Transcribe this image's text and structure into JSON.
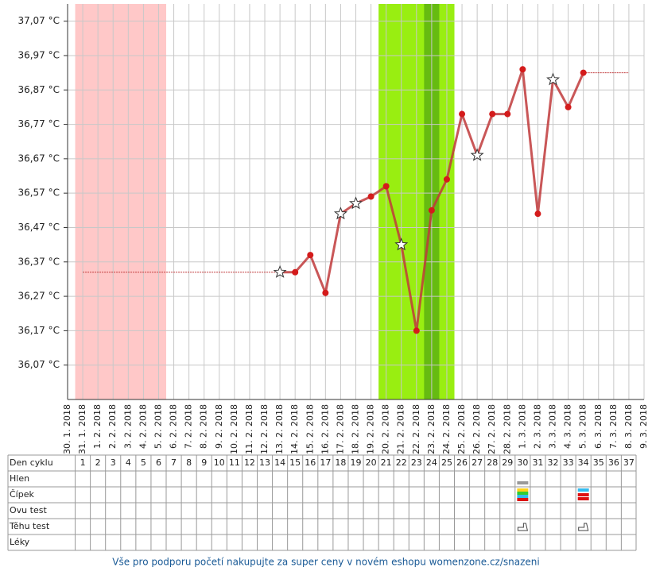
{
  "chart_data": {
    "type": "line",
    "categories": [
      "30. 1. 2018",
      "31. 1. 2018",
      "1. 2. 2018",
      "2. 2. 2018",
      "3. 2. 2018",
      "4. 2. 2018",
      "5. 2. 2018",
      "6. 2. 2018",
      "7. 2. 2018",
      "8. 2. 2018",
      "9. 2. 2018",
      "10. 2. 2018",
      "11. 2. 2018",
      "12. 2. 2018",
      "13. 2. 2018",
      "14. 2. 2018",
      "15. 2. 2018",
      "16. 2. 2018",
      "17. 2. 2018",
      "18. 2. 2018",
      "19. 2. 2018",
      "20. 2. 2018",
      "21. 2. 2018",
      "22. 2. 2018",
      "23. 2. 2018",
      "24. 2. 2018",
      "25. 2. 2018",
      "26. 2. 2018",
      "27. 2. 2018",
      "28. 2. 2018",
      "1. 3. 2018",
      "2. 3. 2018",
      "3. 3. 2018",
      "4. 3. 2018",
      "5. 3. 2018",
      "6. 3. 2018",
      "7. 3. 2018",
      "8. 3. 2018",
      "9. 3. 2018"
    ],
    "series": [
      {
        "color": "#c0393b",
        "values": [
          null,
          null,
          null,
          null,
          null,
          null,
          null,
          null,
          null,
          null,
          null,
          null,
          null,
          null,
          36.34,
          36.34,
          36.39,
          36.28,
          36.51,
          36.54,
          36.56,
          36.59,
          36.42,
          36.17,
          36.52,
          36.61,
          36.8,
          36.68,
          36.8,
          36.8,
          36.93,
          36.51,
          36.9,
          36.82,
          36.92,
          null,
          null,
          null,
          null
        ],
        "point_styles": [
          null,
          null,
          null,
          null,
          null,
          null,
          null,
          null,
          null,
          null,
          null,
          null,
          null,
          null,
          "star",
          "dot",
          "dot",
          "dot",
          "star",
          "star",
          "dot",
          "dot",
          "star",
          "dot",
          "dot",
          "dot",
          "dot",
          "star",
          "dot",
          "dot",
          "dot",
          "dot",
          "star",
          "dot",
          "dot",
          null,
          null,
          null,
          null
        ]
      }
    ],
    "bands": [
      {
        "from": 1,
        "to": 6,
        "color": "#ffc8c8"
      },
      {
        "from": 21,
        "to": 25,
        "color": "#99ee11"
      },
      {
        "from": 24,
        "to": 24,
        "color": "#66bb11"
      }
    ],
    "ylim": [
      35.97,
      37.12
    ],
    "yticks": [
      {
        "value": 36.07,
        "label": "36,07 °C"
      },
      {
        "value": 36.17,
        "label": "36,17 °C"
      },
      {
        "value": 36.27,
        "label": "36,27 °C"
      },
      {
        "value": 36.37,
        "label": "36,37 °C"
      },
      {
        "value": 36.47,
        "label": "36,47 °C"
      },
      {
        "value": 36.57,
        "label": "36,57 °C"
      },
      {
        "value": 36.67,
        "label": "36,67 °C"
      },
      {
        "value": 36.77,
        "label": "36,77 °C"
      },
      {
        "value": 36.87,
        "label": "36,87 °C"
      },
      {
        "value": 36.97,
        "label": "36,97 °C"
      },
      {
        "value": 37.07,
        "label": "37,07 °C"
      }
    ],
    "grid": true
  },
  "table": {
    "row_labels": [
      "Den cyklu",
      "Hlen",
      "Čípek",
      "Ovu test",
      "Těhu test",
      "Léky"
    ],
    "days": [
      1,
      2,
      3,
      4,
      5,
      6,
      7,
      8,
      9,
      10,
      11,
      12,
      13,
      14,
      15,
      16,
      17,
      18,
      19,
      20,
      21,
      22,
      23,
      24,
      25,
      26,
      27,
      28,
      29,
      30,
      31,
      32,
      33,
      34,
      35,
      36,
      37
    ]
  },
  "footer": "Vše pro podporu početí nakupujte za super ceny v novém eshopu womenzone.cz/snazeni"
}
